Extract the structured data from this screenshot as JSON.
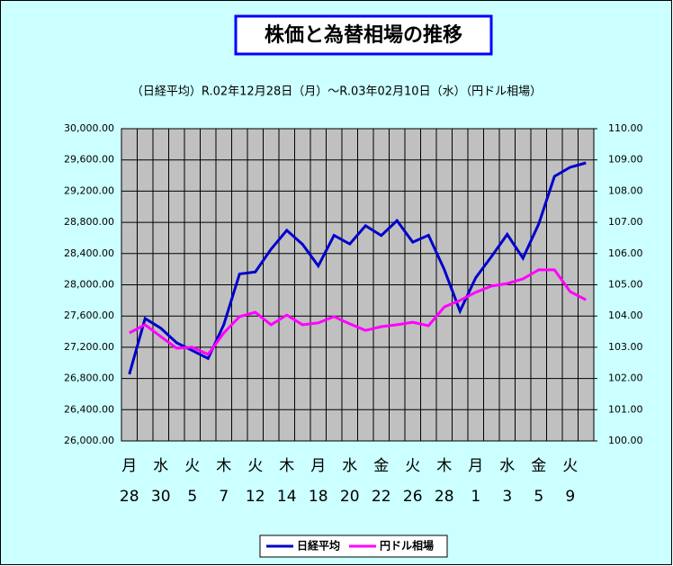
{
  "chart_data": {
    "type": "line",
    "title": "株価と為替相場の推移",
    "subtitle": "（日経平均）R.02年12月28日（月）～R.03年02月10日（水）（円ドル相場）",
    "categories": [
      "28",
      null,
      "30",
      null,
      "5",
      null,
      "7",
      null,
      "12",
      null,
      "14",
      null,
      "18",
      null,
      "20",
      null,
      "22",
      null,
      "26",
      null,
      "28",
      null,
      "1",
      null,
      "3",
      null,
      "5",
      null,
      "9",
      null
    ],
    "weekdays": [
      "月",
      null,
      "水",
      null,
      "火",
      null,
      "木",
      null,
      "火",
      null,
      "木",
      null,
      "月",
      null,
      "水",
      null,
      "金",
      null,
      "火",
      null,
      "木",
      null,
      "月",
      null,
      "水",
      null,
      "金",
      null,
      "火",
      null
    ],
    "series": [
      {
        "name": "日経平均",
        "color": "#0000cc",
        "values": [
          26854,
          27568,
          27444,
          27258,
          27158,
          27056,
          27490,
          28139,
          28164,
          28456,
          28698,
          28519,
          28242,
          28633,
          28523,
          28757,
          28631,
          28822,
          28546,
          28635,
          28197,
          27663,
          28091,
          28362,
          28646,
          28341,
          28779,
          29389,
          29506,
          29562
        ]
      },
      {
        "name": "円ドル相場",
        "color": "#ff00ff",
        "axis": "y2",
        "values": [
          103.46,
          103.72,
          103.34,
          102.97,
          103.0,
          102.77,
          103.46,
          103.98,
          104.12,
          103.72,
          104.03,
          103.72,
          103.78,
          103.98,
          103.75,
          103.54,
          103.66,
          103.72,
          103.8,
          103.69,
          104.29,
          104.5,
          104.76,
          104.96,
          105.04,
          105.19,
          105.48,
          105.48,
          104.78,
          104.52
        ]
      }
    ],
    "ylim": [
      26000,
      30000
    ],
    "yticks": [
      {
        "value": 26000,
        "label": "26,000.00"
      },
      {
        "value": 26400,
        "label": "26,400.00"
      },
      {
        "value": 26800,
        "label": "26,800.00"
      },
      {
        "value": 27200,
        "label": "27,200.00"
      },
      {
        "value": 27600,
        "label": "27,600.00"
      },
      {
        "value": 28000,
        "label": "28,000.00"
      },
      {
        "value": 28400,
        "label": "28,400.00"
      },
      {
        "value": 28800,
        "label": "28,800.00"
      },
      {
        "value": 29200,
        "label": "29,200.00"
      },
      {
        "value": 29600,
        "label": "29,600.00"
      },
      {
        "value": 30000,
        "label": "30,000.00"
      }
    ],
    "y2lim": [
      100,
      110
    ],
    "y2ticks": [
      {
        "value": 100,
        "label": "100.00"
      },
      {
        "value": 101,
        "label": "101.00"
      },
      {
        "value": 102,
        "label": "102.00"
      },
      {
        "value": 103,
        "label": "103.00"
      },
      {
        "value": 104,
        "label": "104.00"
      },
      {
        "value": 105,
        "label": "105.00"
      },
      {
        "value": 106,
        "label": "106.00"
      },
      {
        "value": 107,
        "label": "107.00"
      },
      {
        "value": 108,
        "label": "108.00"
      },
      {
        "value": 109,
        "label": "109.00"
      },
      {
        "value": 110,
        "label": "110.00"
      }
    ],
    "grid": true,
    "legend": "bottom"
  }
}
